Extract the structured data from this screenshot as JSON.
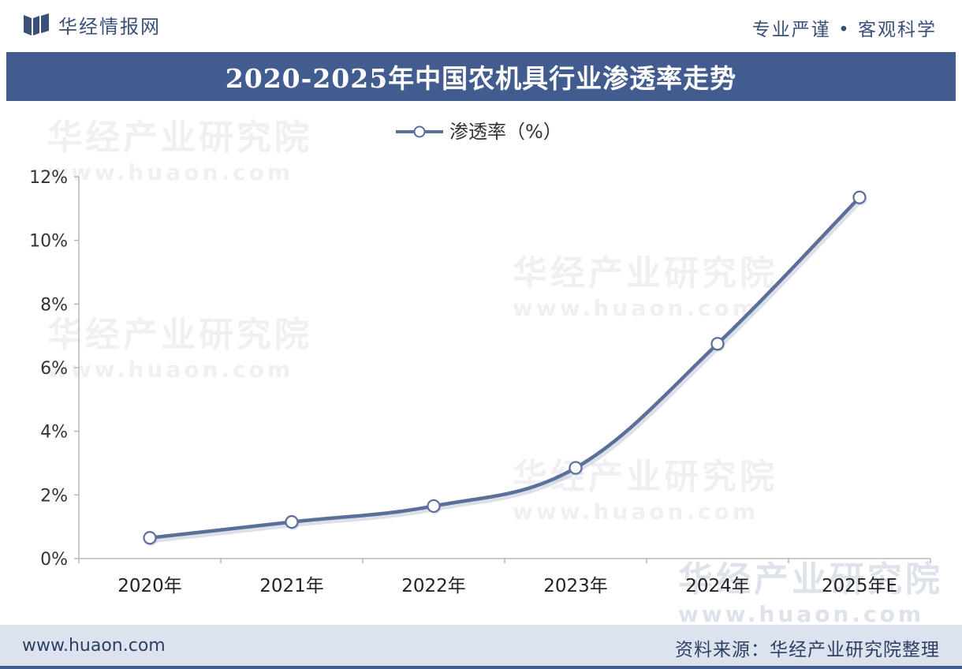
{
  "header": {
    "brand_name": "华经情报网",
    "slogan": "专业严谨 • 客观科学"
  },
  "title": "2020-2025年中国农机具行业渗透率走势",
  "watermark": {
    "cn": "华经产业研究院",
    "en": "www.huaon.com"
  },
  "chart_data": {
    "type": "line",
    "categories": [
      "2020年",
      "2021年",
      "2022年",
      "2023年",
      "2024年",
      "2025年E"
    ],
    "series": [
      {
        "name": "渗透率（%）",
        "values": [
          0.65,
          1.15,
          1.65,
          2.85,
          6.75,
          11.35
        ]
      }
    ],
    "ylim": [
      0,
      12
    ],
    "yticks": [
      0,
      2,
      4,
      6,
      8,
      10,
      12
    ],
    "ytick_labels": [
      "0%",
      "2%",
      "4%",
      "6%",
      "8%",
      "10%",
      "12%"
    ],
    "legend_position": "top-center",
    "grid": false,
    "colors": {
      "line": "#5a6f99",
      "marker_fill": "#ffffff",
      "axis": "#b8b8b8"
    }
  },
  "footer": {
    "url": "www.huaon.com",
    "source": "资料来源：华经产业研究院整理"
  }
}
